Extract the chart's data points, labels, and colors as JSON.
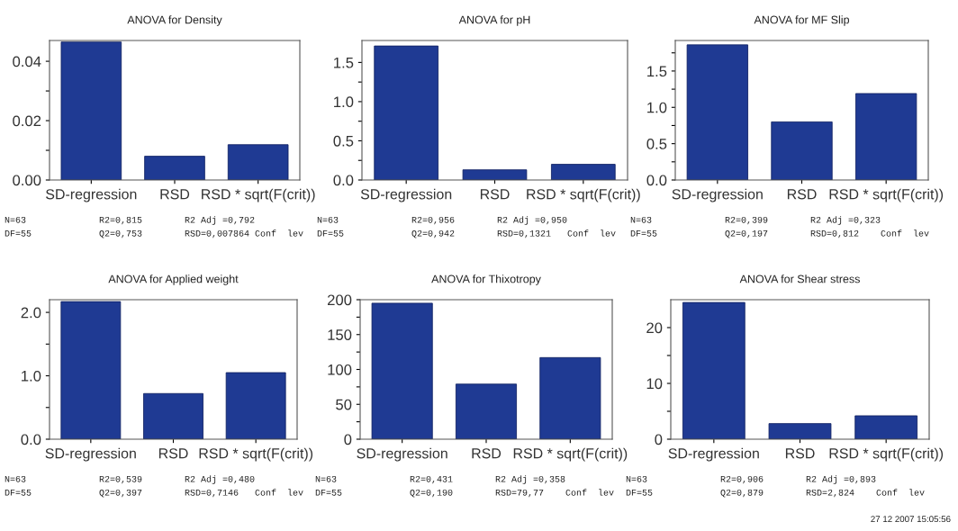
{
  "chart_data": [
    {
      "type": "bar",
      "title": "ANOVA for Density",
      "categories": [
        "SD-regression",
        "RSD",
        "RSD * sqrt(F(crit))"
      ],
      "values": [
        0.0465,
        0.008,
        0.0119
      ],
      "color": "#1f3a93",
      "ylim": [
        0,
        0.047
      ],
      "yticks": [
        {
          "value": 0,
          "label": "0.00"
        },
        {
          "value": 0.01,
          "label": null
        },
        {
          "value": 0.02,
          "label": "0.02"
        },
        {
          "value": 0.03,
          "label": null
        },
        {
          "value": 0.04,
          "label": "0.04"
        }
      ],
      "grid": false,
      "annotations": [
        "N=63",
        "R2=0,815",
        "R2 Adj =0,792",
        "DF=55",
        "Q2=0,753",
        "RSD=0,007864 Conf  lev"
      ]
    },
    {
      "type": "bar",
      "title": "ANOVA for pH",
      "categories": [
        "SD-regression",
        "RSD",
        "RSD * sqrt(F(crit))"
      ],
      "values": [
        1.71,
        0.13,
        0.2
      ],
      "color": "#1f3a93",
      "ylim": [
        0,
        1.78
      ],
      "yticks": [
        {
          "value": 0,
          "label": "0.0"
        },
        {
          "value": 0.25,
          "label": null
        },
        {
          "value": 0.5,
          "label": "0.5"
        },
        {
          "value": 0.75,
          "label": null
        },
        {
          "value": 1.0,
          "label": "1.0"
        },
        {
          "value": 1.25,
          "label": null
        },
        {
          "value": 1.5,
          "label": "1.5"
        }
      ],
      "grid": false,
      "annotations": [
        "N=63",
        "R2=0,956",
        "R2 Adj =0,950",
        "DF=55",
        "Q2=0,942",
        "RSD=0,1321   Conf  lev"
      ]
    },
    {
      "type": "bar",
      "title": "ANOVA for MF Slip",
      "categories": [
        "SD-regression",
        "RSD",
        "RSD * sqrt(F(crit))"
      ],
      "values": [
        1.86,
        0.8,
        1.19
      ],
      "color": "#1f3a93",
      "ylim": [
        0,
        1.92
      ],
      "yticks": [
        {
          "value": 0,
          "label": "0.0"
        },
        {
          "value": 0.25,
          "label": null
        },
        {
          "value": 0.5,
          "label": "0.5"
        },
        {
          "value": 0.75,
          "label": null
        },
        {
          "value": 1.0,
          "label": "1.0"
        },
        {
          "value": 1.25,
          "label": null
        },
        {
          "value": 1.5,
          "label": "1.5"
        },
        {
          "value": 1.75,
          "label": null
        }
      ],
      "grid": false,
      "annotations": [
        "N=63",
        "R2=0,399",
        "R2 Adj =0,323",
        "DF=55",
        "Q2=0,197",
        "RSD=0,812    Conf  lev"
      ]
    },
    {
      "type": "bar",
      "title": "ANOVA for Applied weight",
      "categories": [
        "SD-regression",
        "RSD",
        "RSD * sqrt(F(crit))"
      ],
      "values": [
        2.17,
        0.72,
        1.05
      ],
      "color": "#1f3a93",
      "ylim": [
        0,
        2.2
      ],
      "yticks": [
        {
          "value": 0,
          "label": "0.0"
        },
        {
          "value": 0.5,
          "label": null
        },
        {
          "value": 1.0,
          "label": "1.0"
        },
        {
          "value": 1.5,
          "label": null
        },
        {
          "value": 2.0,
          "label": "2.0"
        }
      ],
      "grid": false,
      "annotations": [
        "N=63",
        "R2=0,539",
        "R2 Adj =0,480",
        "DF=55",
        "Q2=0,397",
        "RSD=0,7146   Conf  lev"
      ]
    },
    {
      "type": "bar",
      "title": "ANOVA for Thixotropy",
      "categories": [
        "SD-regression",
        "RSD",
        "RSD * sqrt(F(crit))"
      ],
      "values": [
        195,
        79,
        117
      ],
      "color": "#1f3a93",
      "ylim": [
        0,
        200
      ],
      "yticks": [
        0,
        {
          "value": 25,
          "label": null
        },
        50,
        {
          "value": 75,
          "label": null
        },
        100,
        {
          "value": 125,
          "label": null
        },
        150,
        {
          "value": 175,
          "label": null
        },
        200
      ],
      "grid": false,
      "annotations": [
        "N=63",
        "R2=0,431",
        "R2 Adj =0,358",
        "DF=55",
        "Q2=0,190",
        "RSD=79,77    Conf  lev"
      ]
    },
    {
      "type": "bar",
      "title": "ANOVA for Shear stress",
      "categories": [
        "SD-regression",
        "RSD",
        "RSD * sqrt(F(crit))"
      ],
      "values": [
        24.5,
        2.8,
        4.2
      ],
      "color": "#1f3a93",
      "ylim": [
        0,
        25
      ],
      "yticks": [
        0,
        {
          "value": 5,
          "label": null
        },
        10,
        {
          "value": 15,
          "label": null
        },
        20
      ],
      "grid": false,
      "annotations": [
        "N=63",
        "R2=0,906",
        "R2 Adj =0,893",
        "DF=55",
        "Q2=0,879",
        "RSD=2,824    Conf  lev",
        "27 12 2007 15:05:56"
      ]
    }
  ]
}
